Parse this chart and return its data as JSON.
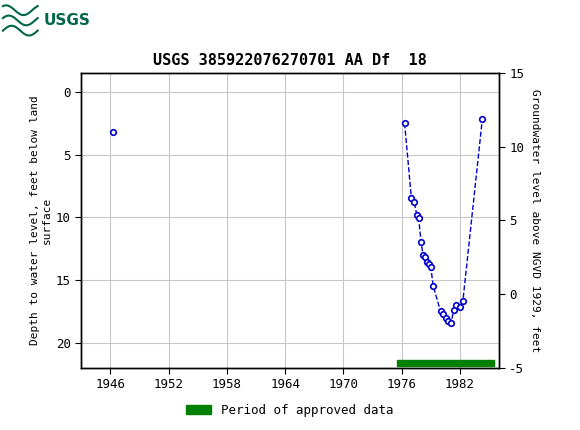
{
  "title": "USGS 385922076270701 AA Df  18",
  "header_bg_color": "#006647",
  "ylabel_left": "Depth to water level, feet below land\nsurface",
  "ylabel_right": "Groundwater level above NGVD 1929, feet",
  "xlim": [
    1943,
    1986
  ],
  "ylim_left": [
    22.0,
    -1.5
  ],
  "ylim_right": [
    -5,
    15
  ],
  "xticks": [
    1946,
    1952,
    1958,
    1964,
    1970,
    1976,
    1982
  ],
  "yticks_left": [
    0,
    5,
    10,
    15,
    20
  ],
  "yticks_right": [
    -5,
    0,
    5,
    10,
    15
  ],
  "grid_color": "#c8c8c8",
  "data_color": "#0000cc",
  "marker_size": 4,
  "marker_facecolor": "white",
  "marker_edgecolor": "#0000cc",
  "approved_bar_color": "#008000",
  "approved_bar_x_start": 1975.5,
  "approved_bar_x_end": 1985.5,
  "legend_label": "Period of approved data",
  "segment1_x": [
    1946.3
  ],
  "segment1_y": [
    3.2
  ],
  "segment2_x": [
    1976.3,
    1977.0,
    1977.3,
    1977.55,
    1977.75,
    1978.0,
    1978.2,
    1978.4,
    1978.6,
    1978.8,
    1979.0,
    1979.25,
    1980.0,
    1980.25,
    1980.55,
    1980.8,
    1981.1,
    1981.35,
    1981.6,
    1982.0,
    1982.3,
    1984.3
  ],
  "segment2_y": [
    2.5,
    8.5,
    8.8,
    9.8,
    10.1,
    12.0,
    13.0,
    13.2,
    13.6,
    13.75,
    14.0,
    15.5,
    17.5,
    17.7,
    18.0,
    18.25,
    18.4,
    17.4,
    17.0,
    17.2,
    16.7,
    2.2
  ],
  "background_color": "#ffffff",
  "spine_color": "#000000",
  "tick_color": "#000000",
  "title_fontsize": 11,
  "axis_fontsize": 8,
  "tick_fontsize": 9
}
